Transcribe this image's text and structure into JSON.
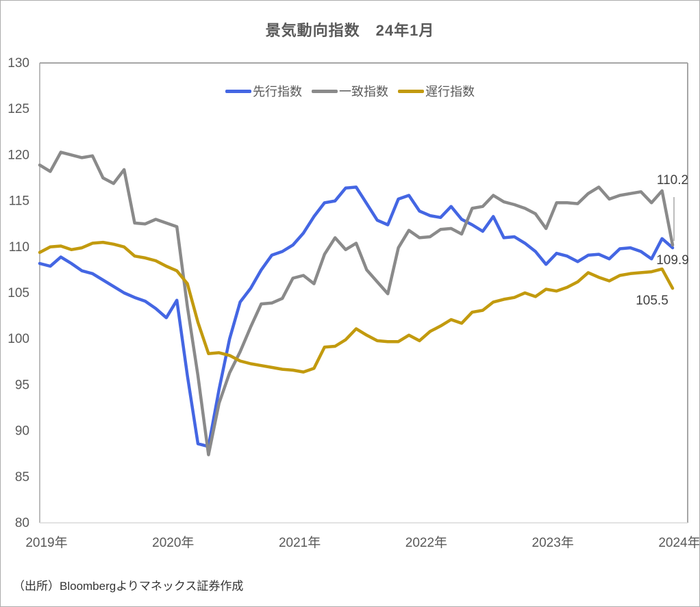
{
  "source": "（出所）Bloombergよりマネックス証券作成",
  "annotations": {
    "coincident_last": "110.2",
    "leading_last": "109.9",
    "lagging_last": "105.5"
  },
  "chart_data": {
    "type": "line",
    "title": "景気動向指数　24年1月",
    "x_start": "2019-01",
    "x_end": "2024-01",
    "x_freq": "monthly",
    "x_tick_labels": [
      "2019年",
      "2020年",
      "2021年",
      "2022年",
      "2023年",
      "2024年"
    ],
    "ylim": [
      80,
      130
    ],
    "y_tick_step": 5,
    "grid": false,
    "legend_position": "top-center",
    "axis_text_color": "#595959",
    "series": [
      {
        "name": "先行指数",
        "color": "#4466e3",
        "values": [
          108.2,
          107.9,
          108.9,
          108.2,
          107.4,
          107.1,
          106.4,
          105.7,
          105.0,
          104.5,
          104.1,
          103.3,
          102.3,
          104.2,
          96.0,
          88.6,
          88.3,
          94.5,
          100.0,
          104.0,
          105.5,
          107.5,
          109.1,
          109.5,
          110.2,
          111.5,
          113.3,
          114.8,
          115.0,
          116.4,
          116.5,
          114.7,
          112.9,
          112.4,
          115.2,
          115.6,
          113.9,
          113.4,
          113.2,
          114.4,
          113.0,
          112.4,
          111.7,
          113.3,
          111.0,
          111.1,
          110.4,
          109.5,
          108.1,
          109.3,
          109.0,
          108.4,
          109.1,
          109.2,
          108.7,
          109.8,
          109.9,
          109.5,
          108.7,
          110.9,
          109.9
        ]
      },
      {
        "name": "一致指数",
        "color": "#8a8a8a",
        "values": [
          118.9,
          118.2,
          120.3,
          120.0,
          119.7,
          119.9,
          117.5,
          116.9,
          118.4,
          112.6,
          112.5,
          113.0,
          112.6,
          112.2,
          103.5,
          96.0,
          87.4,
          93.0,
          96.3,
          98.6,
          101.3,
          103.8,
          103.9,
          104.4,
          106.6,
          106.9,
          106.0,
          109.2,
          111.0,
          109.7,
          110.4,
          107.5,
          106.2,
          104.9,
          109.9,
          111.8,
          111.0,
          111.1,
          111.9,
          112.0,
          111.4,
          114.2,
          114.4,
          115.6,
          114.9,
          114.6,
          114.2,
          113.6,
          112.0,
          114.8,
          114.8,
          114.7,
          115.8,
          116.5,
          115.2,
          115.6,
          115.8,
          116.0,
          114.8,
          116.1,
          110.2
        ]
      },
      {
        "name": "遅行指数",
        "color": "#c29a0e",
        "values": [
          109.4,
          110.0,
          110.1,
          109.7,
          109.9,
          110.4,
          110.5,
          110.3,
          110.0,
          109.0,
          108.8,
          108.5,
          107.9,
          107.4,
          106.0,
          101.8,
          98.4,
          98.5,
          98.2,
          97.6,
          97.3,
          97.1,
          96.9,
          96.7,
          96.6,
          96.4,
          96.8,
          99.1,
          99.2,
          99.9,
          101.1,
          100.4,
          99.8,
          99.7,
          99.7,
          100.4,
          99.8,
          100.8,
          101.4,
          102.1,
          101.7,
          102.9,
          103.1,
          104.0,
          104.3,
          104.5,
          105.0,
          104.6,
          105.4,
          105.2,
          105.6,
          106.2,
          107.2,
          106.7,
          106.3,
          106.9,
          107.1,
          107.2,
          107.3,
          107.6,
          105.5
        ]
      }
    ]
  }
}
